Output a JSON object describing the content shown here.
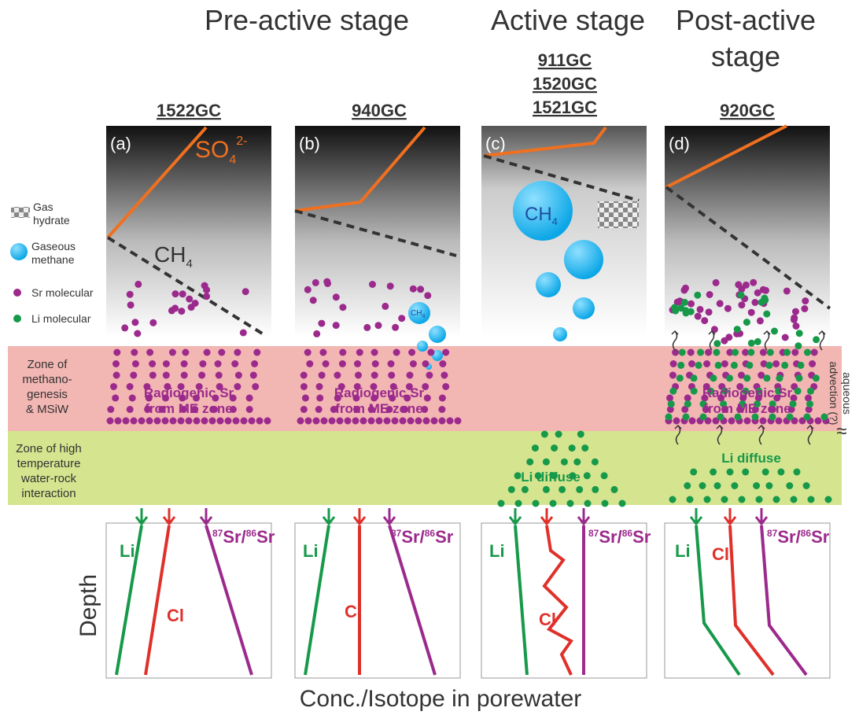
{
  "stages": {
    "pre": "Pre-active stage",
    "active": "Active stage",
    "post": [
      "Post-active",
      "stage"
    ]
  },
  "cores": {
    "a": [
      "1522GC"
    ],
    "b": [
      "940GC"
    ],
    "c": [
      "911GC",
      "1520GC",
      "1521GC"
    ],
    "d": [
      "920GC"
    ]
  },
  "panels": [
    "(a)",
    "(b)",
    "(c)",
    "(d)"
  ],
  "species": {
    "so4": {
      "base": "SO",
      "sub": "4",
      "sup": "2-"
    },
    "ch4": {
      "base": "CH",
      "sub": "4"
    }
  },
  "legend": {
    "hydrate": [
      "Gas",
      "hydrate"
    ],
    "methane": [
      "Gaseous",
      "methane"
    ],
    "sr": "Sr molecular",
    "li": "Li molecular"
  },
  "zones": {
    "methanogenesis": [
      "Zone of",
      "methano-",
      "genesis",
      "& MSiW"
    ],
    "high_temperature": [
      "Zone of high",
      "temperature",
      "water-rock",
      "interaction"
    ]
  },
  "radiogenic": [
    "Radiogenic Sr",
    "from ME zone"
  ],
  "li_diffuse": "Li diffuse",
  "advection": [
    "aqueous",
    "advection (?)"
  ],
  "wave_symbol": "≈",
  "profiles": {
    "li": "Li",
    "cl": "Cl",
    "sr": {
      "a": "87",
      "b": "Sr/",
      "c": "86",
      "d": "Sr"
    }
  },
  "axes": {
    "y": "Depth",
    "x": "Conc./Isotope in porewater"
  }
}
